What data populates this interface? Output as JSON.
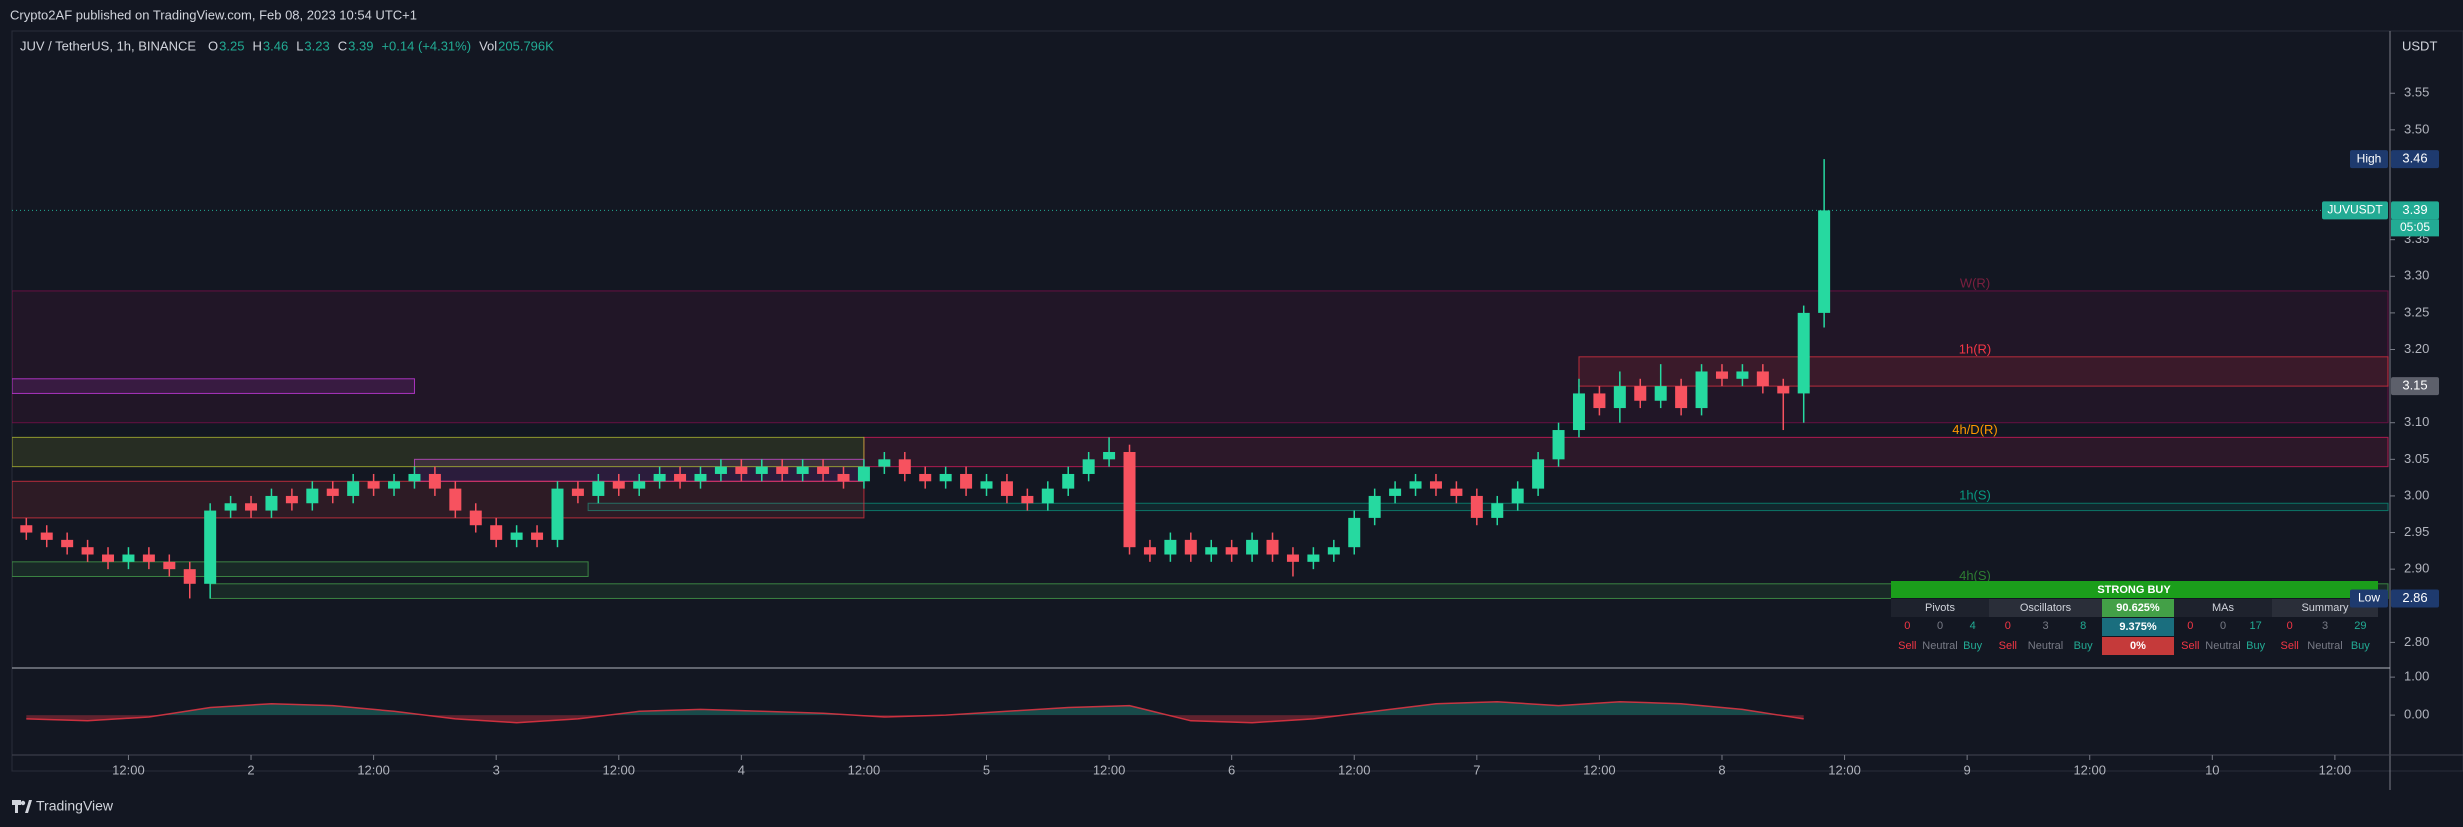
{
  "header": {
    "publisher": "Crypto2AF published on TradingView.com, Feb 08, 2023 10:54 UTC+1"
  },
  "legend": {
    "symbol": "JUV / TetherUS, 1h, BINANCE",
    "ohlc": [
      {
        "label": "O",
        "value": 3.25
      },
      {
        "label": "H",
        "value": 3.46
      },
      {
        "label": "L",
        "value": 3.23
      },
      {
        "label": "C",
        "value": 3.39
      }
    ],
    "change": "+0.14 (+4.31%)",
    "volume_label": "Vol",
    "volume": "205.796K"
  },
  "chart_data": [
    {
      "type": "candlestick",
      "y_unit": "USDT",
      "up_color": "#26d9a0",
      "down_color": "#f7525f",
      "x": [
        2,
        4,
        6,
        8,
        10,
        12,
        14,
        16,
        18,
        20,
        22,
        24,
        26,
        28,
        30,
        32,
        34,
        36,
        38,
        40,
        42,
        44,
        46,
        48,
        50,
        52,
        54,
        56,
        58,
        60,
        62,
        64,
        66,
        68,
        70,
        72,
        74,
        76,
        78,
        80,
        82,
        84,
        86,
        88,
        90,
        92,
        94,
        96,
        98,
        100,
        102,
        104,
        106,
        108,
        110,
        112,
        114,
        116,
        118,
        120,
        122,
        124,
        126,
        128,
        130,
        132,
        134,
        136,
        138,
        140,
        142,
        144,
        146,
        148,
        150,
        152,
        154,
        156,
        158,
        160,
        162,
        164,
        166,
        168,
        170,
        172,
        174,
        176,
        178
      ],
      "open": [
        2.96,
        2.95,
        2.94,
        2.93,
        2.92,
        2.91,
        2.92,
        2.91,
        2.9,
        2.88,
        2.98,
        2.99,
        2.98,
        3.0,
        2.99,
        3.01,
        3.0,
        3.02,
        3.01,
        3.02,
        3.03,
        3.01,
        2.98,
        2.96,
        2.94,
        2.95,
        2.94,
        3.01,
        3.0,
        3.02,
        3.01,
        3.02,
        3.03,
        3.02,
        3.03,
        3.04,
        3.03,
        3.04,
        3.03,
        3.04,
        3.03,
        3.02,
        3.04,
        3.05,
        3.03,
        3.02,
        3.03,
        3.01,
        3.02,
        3.0,
        2.99,
        3.01,
        3.03,
        3.05,
        3.06,
        2.93,
        2.92,
        2.94,
        2.92,
        2.93,
        2.92,
        2.94,
        2.92,
        2.91,
        2.92,
        2.93,
        2.97,
        3.0,
        3.01,
        3.02,
        3.01,
        3.0,
        2.97,
        2.99,
        3.01,
        3.05,
        3.09,
        3.14,
        3.12,
        3.15,
        3.13,
        3.15,
        3.12,
        3.17,
        3.16,
        3.17,
        3.15,
        3.14,
        3.25
      ],
      "high": [
        2.97,
        2.96,
        2.95,
        2.94,
        2.93,
        2.93,
        2.93,
        2.92,
        2.91,
        2.99,
        3.0,
        3.0,
        3.01,
        3.01,
        3.02,
        3.02,
        3.03,
        3.03,
        3.03,
        3.04,
        3.04,
        3.02,
        2.99,
        2.97,
        2.96,
        2.96,
        3.02,
        3.02,
        3.03,
        3.03,
        3.03,
        3.04,
        3.04,
        3.04,
        3.05,
        3.05,
        3.05,
        3.05,
        3.05,
        3.05,
        3.04,
        3.05,
        3.06,
        3.06,
        3.04,
        3.04,
        3.04,
        3.03,
        3.03,
        3.01,
        3.02,
        3.04,
        3.06,
        3.08,
        3.07,
        2.94,
        2.95,
        2.95,
        2.94,
        2.94,
        2.95,
        2.95,
        2.93,
        2.93,
        2.94,
        2.98,
        3.01,
        3.02,
        3.03,
        3.03,
        3.02,
        3.01,
        3.0,
        3.02,
        3.06,
        3.1,
        3.16,
        3.15,
        3.17,
        3.16,
        3.18,
        3.16,
        3.18,
        3.18,
        3.18,
        3.18,
        3.16,
        3.26,
        3.46
      ],
      "low": [
        2.94,
        2.93,
        2.92,
        2.91,
        2.9,
        2.9,
        2.9,
        2.89,
        2.86,
        2.86,
        2.97,
        2.97,
        2.97,
        2.98,
        2.98,
        2.99,
        2.99,
        3.0,
        3.0,
        3.01,
        3.0,
        2.97,
        2.95,
        2.93,
        2.93,
        2.93,
        2.93,
        2.99,
        2.99,
        3.0,
        3.0,
        3.01,
        3.01,
        3.01,
        3.02,
        3.02,
        3.02,
        3.02,
        3.02,
        3.02,
        3.01,
        3.01,
        3.03,
        3.02,
        3.01,
        3.01,
        3.0,
        3.0,
        2.99,
        2.98,
        2.98,
        3.0,
        3.02,
        3.04,
        2.92,
        2.91,
        2.91,
        2.91,
        2.91,
        2.91,
        2.91,
        2.91,
        2.89,
        2.9,
        2.91,
        2.92,
        2.96,
        2.99,
        3.0,
        3.0,
        2.99,
        2.96,
        2.96,
        2.98,
        3.0,
        3.04,
        3.08,
        3.11,
        3.1,
        3.12,
        3.12,
        3.11,
        3.11,
        3.15,
        3.15,
        3.14,
        3.09,
        3.1,
        3.23
      ],
      "close": [
        2.95,
        2.94,
        2.93,
        2.92,
        2.91,
        2.92,
        2.91,
        2.9,
        2.88,
        2.98,
        2.99,
        2.98,
        3.0,
        2.99,
        3.01,
        3.0,
        3.02,
        3.01,
        3.02,
        3.03,
        3.01,
        2.98,
        2.96,
        2.94,
        2.95,
        2.94,
        3.01,
        3.0,
        3.02,
        3.01,
        3.02,
        3.03,
        3.02,
        3.03,
        3.04,
        3.03,
        3.04,
        3.03,
        3.04,
        3.03,
        3.02,
        3.04,
        3.05,
        3.03,
        3.02,
        3.03,
        3.01,
        3.02,
        3.0,
        2.99,
        3.01,
        3.03,
        3.05,
        3.06,
        2.93,
        2.92,
        2.94,
        2.92,
        2.93,
        2.92,
        2.94,
        2.92,
        2.91,
        2.92,
        2.93,
        2.97,
        3.0,
        3.01,
        3.02,
        3.01,
        3.0,
        2.97,
        2.99,
        3.01,
        3.05,
        3.09,
        3.14,
        3.12,
        3.15,
        3.13,
        3.15,
        3.12,
        3.17,
        3.16,
        3.17,
        3.15,
        3.14,
        3.25,
        3.39
      ],
      "xlim": [
        0.6,
        233.2
      ],
      "xticks": [
        {
          "value": 12,
          "label": "12:00"
        },
        {
          "value": 24,
          "label": "2"
        },
        {
          "value": 36,
          "label": "12:00"
        },
        {
          "value": 48,
          "label": "3"
        },
        {
          "value": 60,
          "label": "12:00"
        },
        {
          "value": 72,
          "label": "4"
        },
        {
          "value": 84,
          "label": "12:00"
        },
        {
          "value": 96,
          "label": "5"
        },
        {
          "value": 108,
          "label": "12:00"
        },
        {
          "value": 120,
          "label": "6"
        },
        {
          "value": 132,
          "label": "12:00"
        },
        {
          "value": 144,
          "label": "7"
        },
        {
          "value": 156,
          "label": "12:00"
        },
        {
          "value": 168,
          "label": "8"
        },
        {
          "value": 180,
          "label": "12:00"
        },
        {
          "value": 192,
          "label": "9"
        },
        {
          "value": 204,
          "label": "12:00"
        },
        {
          "value": 216,
          "label": "10"
        },
        {
          "value": 228,
          "label": "12:00"
        }
      ],
      "ylim": [
        2.765,
        3.635
      ],
      "yticks": [
        3.55,
        {
          "value": 3.5,
          "label": "3.50"
        },
        3.35,
        {
          "value": 3.3,
          "label": "3.30"
        },
        3.25,
        {
          "value": 3.2,
          "label": "3.20"
        },
        {
          "value": 3.1,
          "label": "3.10"
        },
        3.05,
        {
          "value": 3,
          "label": "3.00"
        },
        2.95,
        {
          "value": 2.9,
          "label": "2.90"
        },
        {
          "value": 2.8,
          "label": "2.80"
        }
      ],
      "zones": [
        {
          "label": "W(R)",
          "top": 3.28,
          "bottom": 3.1,
          "color": "#880e4f",
          "label_color": "#7b1f3f"
        },
        {
          "label": "1h(R)",
          "top": 3.19,
          "bottom": 3.15,
          "start": 154,
          "color": "#f23645",
          "label_color": "#f23645"
        },
        {
          "label": "4h/D(R)",
          "top": 3.08,
          "bottom": 3.04,
          "start": 84,
          "color": "#e91e63",
          "label_color": "#ff9800"
        },
        {
          "label": "1h(S)",
          "top": 2.99,
          "bottom": 2.98,
          "start": 57,
          "color": "#089981",
          "label_color": "#089981"
        },
        {
          "label": "4h(S)",
          "top": 2.88,
          "bottom": 2.86,
          "start": 20,
          "color": "#4caf50",
          "label_color": "#2e7d32"
        },
        {
          "top": 3.16,
          "bottom": 3.14,
          "end": 40,
          "color": "#e040fb"
        },
        {
          "top": 3.05,
          "bottom": 3.02,
          "start": 40,
          "end": 84,
          "color": "#e040fb"
        },
        {
          "top": 3.08,
          "bottom": 3.04,
          "end": 84,
          "color": "#c0ca33"
        },
        {
          "top": 3.02,
          "bottom": 2.97,
          "end": 84,
          "color": "#f23645"
        },
        {
          "top": 2.91,
          "bottom": 2.89,
          "end": 57,
          "color": "#4caf50"
        },
        {
          "top": 2.82,
          "bottom": 2.82,
          "color": "#2962ff"
        }
      ],
      "badges": [
        {
          "label": "High",
          "value": 3.46,
          "color": "#1e3a6e"
        },
        {
          "label": "JUVUSDT",
          "value": 3.39,
          "sub": "05:05",
          "color": "#22ab94",
          "line": true
        },
        {
          "value": 3.15,
          "color": "#5d606b"
        },
        {
          "label": "Low",
          "value": 2.86,
          "color": "#1e3a6e"
        }
      ]
    },
    {
      "type": "area",
      "pos_color": "#22ab94",
      "neg_color": "#f23645",
      "x": [
        2,
        8,
        14,
        20,
        26,
        32,
        38,
        44,
        50,
        56,
        62,
        68,
        74,
        80,
        86,
        92,
        98,
        104,
        110,
        116,
        122,
        128,
        134,
        140,
        146,
        152,
        158,
        164,
        170,
        176
      ],
      "values": [
        -0.1,
        -0.15,
        -0.05,
        0.2,
        0.3,
        0.25,
        0.1,
        -0.1,
        -0.2,
        -0.1,
        0.1,
        0.15,
        0.1,
        0.05,
        -0.05,
        0,
        0.1,
        0.2,
        0.25,
        -0.15,
        -0.2,
        -0.1,
        0.1,
        0.3,
        0.35,
        0.25,
        0.35,
        0.3,
        0.15,
        -0.1
      ],
      "xlim": [
        0.6,
        233.2
      ],
      "ylim": [
        -1.05,
        1.24
      ],
      "yticks": [
        {
          "value": 1,
          "label": "1.00"
        },
        {
          "value": 0,
          "label": "0.00"
        }
      ]
    }
  ],
  "table": {
    "title": "STRONG BUY",
    "groups": [
      {
        "name": "Pivots",
        "counts": [
          0,
          0,
          4
        ]
      },
      {
        "name": "Oscillators",
        "counts": [
          0,
          3,
          8
        ]
      },
      {
        "name": "MAs",
        "counts": [
          0,
          0,
          17
        ]
      },
      {
        "name": "Summary",
        "counts": [
          0,
          3,
          29
        ]
      }
    ],
    "labels": [
      "Sell",
      "Neutral",
      "Buy"
    ],
    "percents": [
      "90.625%",
      "9.375%",
      "0%"
    ]
  },
  "footer": {
    "brand": "TradingView"
  }
}
